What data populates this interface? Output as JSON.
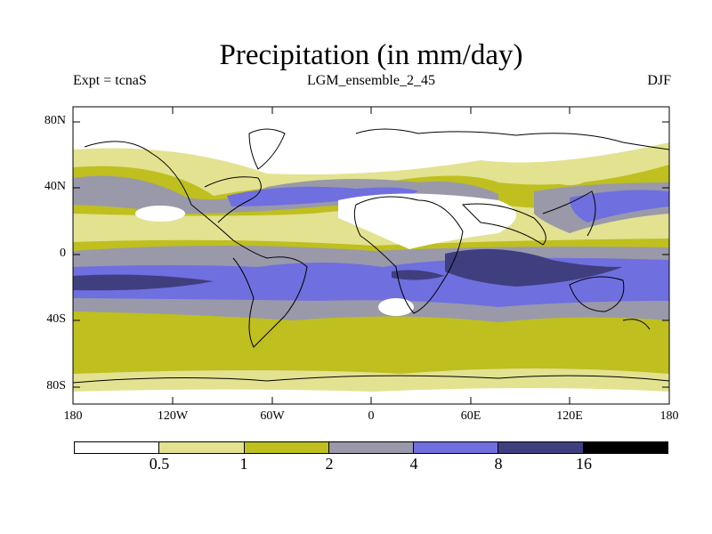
{
  "title": "Precipitation (in mm/day)",
  "experiment": "Expt = tcnaS",
  "dataset": "LGM_ensemble_2_45",
  "season": "DJF",
  "yticks": [
    "80N",
    "40N",
    "0",
    "40S",
    "80S"
  ],
  "xticks": [
    "180",
    "120W",
    "60W",
    "0",
    "60E",
    "120E",
    "180"
  ],
  "colorbar": {
    "colors": [
      "#ffffff",
      "#e2e291",
      "#bfbf1f",
      "#9999aa",
      "#6f6fdf",
      "#3f3f80",
      "#000000"
    ],
    "labels": [
      "0.5",
      "1",
      "2",
      "4",
      "8",
      "16"
    ]
  }
}
